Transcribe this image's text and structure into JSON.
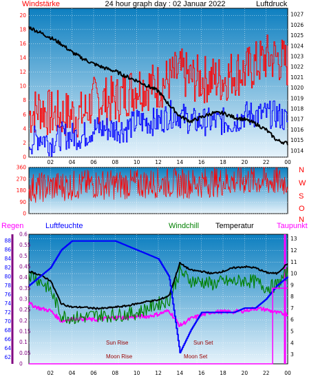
{
  "header": {
    "title": "24 hour graph day : 02 Januar 2022",
    "left_label": "Windstärke",
    "right_label": "Luftdruck"
  },
  "colors": {
    "red": "#ff0000",
    "blue": "#0000ff",
    "green": "#008000",
    "magenta": "#ff00ff",
    "purple": "#800080",
    "sky_top": "#0d7fc0",
    "sky_bottom": "#e6f3fb",
    "dark_red": "#990000"
  },
  "labels": {
    "regen": "Regen",
    "luftfeuchte": "Luftfeuchte",
    "windchill": "Windchill",
    "temperatur": "Temperatur",
    "taupunkt": "Taupunkt",
    "sun_rise": "Sun Rise",
    "sun_set": "Sun Set",
    "moon_rise": "Moon Rise",
    "moon_set": "Moon Set",
    "compass": [
      "N",
      "W",
      "S",
      "O",
      "N"
    ]
  },
  "chart_data": [
    {
      "id": "wind",
      "type": "line",
      "title": "24 hour graph day : 02 Januar 2022",
      "x_tick_labels": [
        "02",
        "04",
        "06",
        "08",
        "10",
        "12",
        "14",
        "16",
        "18",
        "20",
        "22",
        "00"
      ],
      "left_axis": {
        "label": "Windstärke",
        "ticks": [
          "0",
          "2",
          "4",
          "6",
          "8",
          "10",
          "12",
          "14",
          "16",
          "18",
          "20"
        ],
        "range": [
          0,
          21
        ]
      },
      "right_axis": {
        "label": "Luftdruck",
        "ticks": [
          "1014",
          "1015",
          "1016",
          "1017",
          "1018",
          "1019",
          "1020",
          "1021",
          "1022",
          "1023",
          "1024",
          "1025",
          "1026",
          "1027"
        ],
        "range": [
          1013.4,
          1027.6
        ]
      },
      "series": [
        {
          "name": "Luftdruck",
          "color": "#000000",
          "x": [
            0,
            1,
            2,
            3,
            4,
            5,
            6,
            7,
            8,
            9,
            10,
            11,
            12,
            13,
            14,
            15,
            16,
            17,
            18,
            19,
            20,
            21,
            22,
            23,
            24
          ],
          "y": [
            1025.8,
            1025.3,
            1024.8,
            1024.2,
            1023.4,
            1022.8,
            1022.3,
            1021.9,
            1021.6,
            1021.1,
            1020.7,
            1020.2,
            1019.7,
            1018.4,
            1017.3,
            1016.8,
            1017.2,
            1017.6,
            1017.6,
            1017.2,
            1017.0,
            1016.6,
            1016.0,
            1015.0,
            1014.7
          ]
        },
        {
          "name": "Böen",
          "color": "#ff0000",
          "x": [
            0,
            1,
            2,
            3,
            4,
            5,
            6,
            7,
            8,
            9,
            10,
            11,
            12,
            13,
            14,
            15,
            16,
            17,
            18,
            19,
            20,
            21,
            22,
            23,
            24
          ],
          "y": [
            6,
            7,
            6,
            6,
            6,
            6,
            8,
            8,
            8,
            9,
            10,
            10,
            10,
            11,
            12,
            11,
            11,
            11,
            11,
            12,
            12,
            13,
            14,
            14,
            13
          ]
        },
        {
          "name": "Wind",
          "color": "#0000ff",
          "x": [
            0,
            1,
            2,
            3,
            4,
            5,
            6,
            7,
            8,
            9,
            10,
            11,
            12,
            13,
            14,
            15,
            16,
            17,
            18,
            19,
            20,
            21,
            22,
            23,
            24
          ],
          "y": [
            2,
            3,
            2,
            3,
            3,
            3,
            4,
            4,
            4,
            4,
            5,
            5,
            5,
            6,
            6,
            5,
            5,
            5,
            5,
            5,
            6,
            6,
            6,
            6,
            5
          ]
        }
      ]
    },
    {
      "id": "wind_direction",
      "type": "line",
      "left_axis": {
        "ticks": [
          "0",
          "90",
          "180",
          "270",
          "360"
        ],
        "range": [
          0,
          360
        ]
      },
      "right_axis": {
        "ticks": [
          "N",
          "O",
          "S",
          "W",
          "N"
        ]
      },
      "series": [
        {
          "name": "Windrichtung",
          "color": "#ff0000",
          "x": [
            0,
            2,
            4,
            6,
            8,
            10,
            12,
            14,
            16,
            18,
            20,
            22,
            24
          ],
          "y": [
            200,
            210,
            220,
            230,
            225,
            230,
            240,
            235,
            240,
            250,
            260,
            255,
            250
          ]
        }
      ]
    },
    {
      "id": "temp_humidity",
      "type": "line",
      "x_tick_labels": [
        "02",
        "04",
        "06",
        "08",
        "10",
        "12",
        "14",
        "16",
        "18",
        "20",
        "22",
        "00"
      ],
      "axes": [
        {
          "label": "Regen",
          "ticks": [
            "0",
            "0.05",
            "0.1",
            "0.15",
            "0.2",
            "0.25",
            "0.3",
            "0.35",
            "0.4",
            "0.45",
            "0.5",
            "0.55",
            "0.6"
          ],
          "range": [
            0,
            0.6
          ]
        },
        {
          "label": "Luftfeuchte",
          "ticks": [
            "62",
            "64",
            "66",
            "68",
            "70",
            "72",
            "74",
            "76",
            "78",
            "80",
            "82",
            "84",
            "86",
            "88"
          ],
          "range": [
            60.5,
            89.5
          ]
        },
        {
          "label": "Temperatur",
          "ticks": [
            "3",
            "4",
            "5",
            "6",
            "7",
            "8",
            "9",
            "10",
            "11",
            "12",
            "13"
          ],
          "range": [
            2.2,
            13.4
          ]
        }
      ],
      "series": [
        {
          "name": "Luftfeuchte",
          "color": "#0000ff",
          "x": [
            0,
            1,
            2,
            3,
            4,
            5,
            6,
            7,
            8,
            9,
            10,
            11,
            12,
            13,
            14,
            15,
            16,
            17,
            18,
            19,
            20,
            21,
            22,
            23,
            24
          ],
          "y": [
            78,
            80,
            82,
            86,
            88,
            88,
            88,
            88,
            88,
            87,
            86,
            85,
            84,
            80,
            63,
            68,
            72,
            72,
            72,
            72,
            73,
            73,
            75,
            78,
            80
          ]
        },
        {
          "name": "Temperatur",
          "color": "#000000",
          "x": [
            0,
            1,
            2,
            3,
            4,
            5,
            6,
            7,
            8,
            9,
            10,
            11,
            12,
            13,
            14,
            15,
            16,
            17,
            18,
            19,
            20,
            21,
            22,
            23,
            24
          ],
          "y": [
            10.2,
            9.9,
            9.4,
            7.4,
            7.1,
            7.1,
            7.0,
            7.0,
            7.1,
            7.2,
            7.4,
            7.6,
            7.7,
            8.1,
            10.9,
            10.3,
            10.2,
            10.0,
            10.2,
            10.5,
            10.6,
            10.5,
            10.1,
            10.0,
            10.9
          ]
        },
        {
          "name": "Windchill",
          "color": "#008000",
          "x": [
            0,
            1,
            2,
            3,
            4,
            5,
            6,
            7,
            8,
            9,
            10,
            11,
            12,
            13,
            14,
            15,
            16,
            17,
            18,
            19,
            20,
            21,
            22,
            23,
            24
          ],
          "y": [
            10.0,
            9.4,
            8.6,
            6.4,
            6.2,
            6.2,
            6.4,
            6.4,
            6.4,
            6.5,
            6.6,
            7.0,
            7.4,
            7.7,
            10.2,
            9.4,
            9.3,
            9.1,
            9.3,
            9.3,
            9.4,
            9.3,
            8.8,
            9.0,
            10.1
          ]
        },
        {
          "name": "Taupunkt",
          "color": "#ff00ff",
          "x": [
            0,
            1,
            2,
            3,
            4,
            5,
            6,
            7,
            8,
            9,
            10,
            11,
            12,
            13,
            14,
            15,
            16,
            17,
            18,
            19,
            20,
            21,
            22,
            23,
            24
          ],
          "y": [
            7.4,
            7.0,
            6.8,
            5.9,
            6.1,
            6.1,
            6.0,
            6.1,
            6.2,
            6.2,
            6.3,
            6.3,
            6.5,
            6.8,
            5.5,
            6.1,
            6.4,
            6.7,
            6.7,
            6.7,
            6.8,
            7.0,
            6.9,
            6.6,
            6.5
          ]
        },
        {
          "name": "Regen",
          "color": "#ff00ff",
          "x": [
            0,
            4,
            8,
            12,
            16,
            20,
            22.4,
            22.6,
            24
          ],
          "y": [
            0,
            0,
            0,
            0,
            0,
            0,
            0,
            0.35,
            0.35
          ]
        }
      ]
    }
  ]
}
